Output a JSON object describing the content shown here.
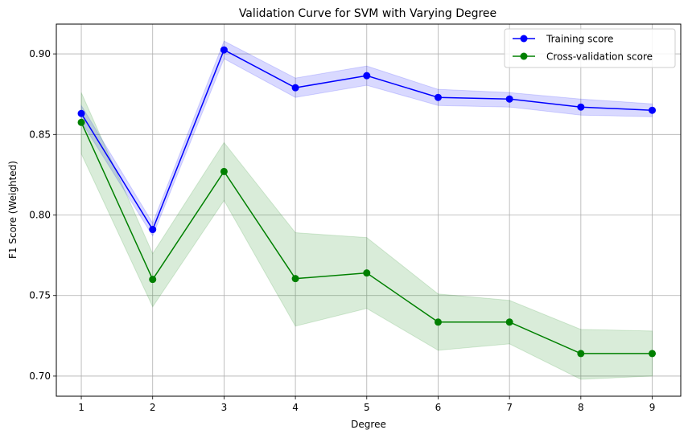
{
  "chart_data": {
    "type": "line",
    "title": "Validation Curve for SVM with Varying Degree",
    "xlabel": "Degree",
    "ylabel": "F1 Score (Weighted)",
    "x": [
      1,
      2,
      3,
      4,
      5,
      6,
      7,
      8,
      9
    ],
    "xlim": [
      0.65,
      9.4
    ],
    "ylim": [
      0.6875,
      0.9185
    ],
    "xticks": [
      1,
      2,
      3,
      4,
      5,
      6,
      7,
      8,
      9
    ],
    "yticks": [
      0.7,
      0.75,
      0.8,
      0.85,
      0.9
    ],
    "grid": true,
    "legend_position": "top-right",
    "series": [
      {
        "name": "Training score",
        "color": "#0000ff",
        "fill_color": "#0000ff",
        "values": [
          0.863,
          0.791,
          0.9025,
          0.879,
          0.8865,
          0.873,
          0.872,
          0.867,
          0.865
        ],
        "lower": [
          0.858,
          0.787,
          0.897,
          0.873,
          0.8805,
          0.868,
          0.867,
          0.862,
          0.861
        ],
        "upper": [
          0.868,
          0.795,
          0.908,
          0.885,
          0.8925,
          0.878,
          0.876,
          0.872,
          0.869
        ]
      },
      {
        "name": "Cross-validation score",
        "color": "#008000",
        "fill_color": "#008000",
        "values": [
          0.8575,
          0.76,
          0.827,
          0.7605,
          0.764,
          0.7335,
          0.7335,
          0.714,
          0.714
        ],
        "lower": [
          0.838,
          0.743,
          0.809,
          0.731,
          0.742,
          0.716,
          0.72,
          0.698,
          0.7
        ],
        "upper": [
          0.876,
          0.776,
          0.845,
          0.789,
          0.786,
          0.751,
          0.747,
          0.729,
          0.728
        ]
      }
    ]
  }
}
